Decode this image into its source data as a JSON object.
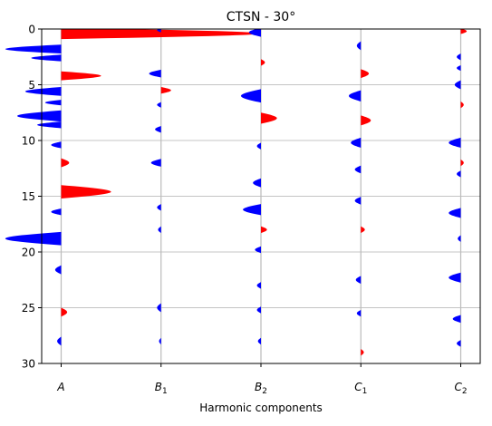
{
  "chart_data": {
    "type": "area",
    "title": "CTSN - 30°",
    "xlabel": "Harmonic components",
    "ylabel": "",
    "ylim": [
      0,
      30
    ],
    "y_inverted": true,
    "y_ticks": [
      0,
      5,
      10,
      15,
      20,
      25,
      30
    ],
    "grid": "horizontal",
    "categories": [
      {
        "base": "A",
        "sub": ""
      },
      {
        "base": "B",
        "sub": "1"
      },
      {
        "base": "B",
        "sub": "2"
      },
      {
        "base": "C",
        "sub": "1"
      },
      {
        "base": "C",
        "sub": "2"
      }
    ],
    "colors": {
      "positive": "#ff0000",
      "negative": "#0000ff",
      "trace": "#bbbbbb",
      "grid": "#b0b0b0"
    },
    "series": [
      {
        "lobes": [
          {
            "center": 0.4,
            "width": 1.0,
            "amp": 1.0
          },
          {
            "center": 1.8,
            "width": 0.8,
            "amp": -0.28
          },
          {
            "center": 2.6,
            "width": 0.6,
            "amp": -0.15
          },
          {
            "center": 4.2,
            "width": 0.8,
            "amp": 0.2
          },
          {
            "center": 5.6,
            "width": 0.8,
            "amp": -0.18
          },
          {
            "center": 6.6,
            "width": 0.5,
            "amp": -0.08
          },
          {
            "center": 7.8,
            "width": 1.0,
            "amp": -0.22
          },
          {
            "center": 8.6,
            "width": 0.6,
            "amp": -0.12
          },
          {
            "center": 10.4,
            "width": 0.6,
            "amp": -0.05
          },
          {
            "center": 12.0,
            "width": 0.8,
            "amp": 0.04
          },
          {
            "center": 14.6,
            "width": 1.2,
            "amp": 0.25
          },
          {
            "center": 16.4,
            "width": 0.6,
            "amp": -0.05
          },
          {
            "center": 18.8,
            "width": 1.2,
            "amp": -0.28
          },
          {
            "center": 21.6,
            "width": 0.8,
            "amp": -0.03
          },
          {
            "center": 25.4,
            "width": 0.8,
            "amp": 0.03
          },
          {
            "center": 28.0,
            "width": 0.8,
            "amp": -0.02
          }
        ]
      },
      {
        "lobes": [
          {
            "center": 0.1,
            "width": 0.4,
            "amp": -0.02
          },
          {
            "center": 4.0,
            "width": 0.7,
            "amp": -0.06
          },
          {
            "center": 5.5,
            "width": 0.6,
            "amp": 0.05
          },
          {
            "center": 6.8,
            "width": 0.5,
            "amp": -0.02
          },
          {
            "center": 9.0,
            "width": 0.6,
            "amp": -0.03
          },
          {
            "center": 12.0,
            "width": 0.7,
            "amp": -0.05
          },
          {
            "center": 16.0,
            "width": 0.6,
            "amp": -0.02
          },
          {
            "center": 18.0,
            "width": 0.6,
            "amp": -0.015
          },
          {
            "center": 25.0,
            "width": 0.8,
            "amp": -0.02
          },
          {
            "center": 28.0,
            "width": 0.6,
            "amp": -0.01
          }
        ]
      },
      {
        "lobes": [
          {
            "center": 0.3,
            "width": 0.8,
            "amp": -0.06
          },
          {
            "center": 3.0,
            "width": 0.6,
            "amp": 0.02
          },
          {
            "center": 6.0,
            "width": 1.2,
            "amp": -0.1
          },
          {
            "center": 8.0,
            "width": 1.0,
            "amp": 0.08
          },
          {
            "center": 10.5,
            "width": 0.6,
            "amp": -0.02
          },
          {
            "center": 13.8,
            "width": 0.8,
            "amp": -0.04
          },
          {
            "center": 16.2,
            "width": 1.0,
            "amp": -0.09
          },
          {
            "center": 18.0,
            "width": 0.6,
            "amp": 0.03
          },
          {
            "center": 19.8,
            "width": 0.6,
            "amp": -0.03
          },
          {
            "center": 23.0,
            "width": 0.6,
            "amp": -0.02
          },
          {
            "center": 25.2,
            "width": 0.6,
            "amp": -0.02
          },
          {
            "center": 28.0,
            "width": 0.6,
            "amp": -0.015
          }
        ]
      },
      {
        "lobes": [
          {
            "center": 1.5,
            "width": 0.8,
            "amp": -0.02
          },
          {
            "center": 4.0,
            "width": 0.8,
            "amp": 0.04
          },
          {
            "center": 6.0,
            "width": 1.0,
            "amp": -0.06
          },
          {
            "center": 8.2,
            "width": 0.9,
            "amp": 0.05
          },
          {
            "center": 10.2,
            "width": 0.9,
            "amp": -0.05
          },
          {
            "center": 12.6,
            "width": 0.7,
            "amp": -0.03
          },
          {
            "center": 15.4,
            "width": 0.7,
            "amp": -0.03
          },
          {
            "center": 18.0,
            "width": 0.6,
            "amp": 0.02
          },
          {
            "center": 22.5,
            "width": 0.7,
            "amp": -0.025
          },
          {
            "center": 25.5,
            "width": 0.6,
            "amp": -0.02
          },
          {
            "center": 29.0,
            "width": 0.6,
            "amp": 0.015
          }
        ]
      },
      {
        "lobes": [
          {
            "center": 0.2,
            "width": 0.5,
            "amp": 0.03
          },
          {
            "center": 2.5,
            "width": 0.6,
            "amp": -0.02
          },
          {
            "center": 3.5,
            "width": 0.5,
            "amp": -0.02
          },
          {
            "center": 5.0,
            "width": 0.8,
            "amp": -0.03
          },
          {
            "center": 6.8,
            "width": 0.6,
            "amp": 0.015
          },
          {
            "center": 10.2,
            "width": 0.9,
            "amp": -0.06
          },
          {
            "center": 12.0,
            "width": 0.6,
            "amp": 0.015
          },
          {
            "center": 13.0,
            "width": 0.6,
            "amp": -0.02
          },
          {
            "center": 16.5,
            "width": 0.9,
            "amp": -0.06
          },
          {
            "center": 18.8,
            "width": 0.6,
            "amp": -0.015
          },
          {
            "center": 22.3,
            "width": 0.9,
            "amp": -0.06
          },
          {
            "center": 26.0,
            "width": 0.7,
            "amp": -0.04
          },
          {
            "center": 28.2,
            "width": 0.6,
            "amp": -0.02
          }
        ]
      }
    ]
  }
}
